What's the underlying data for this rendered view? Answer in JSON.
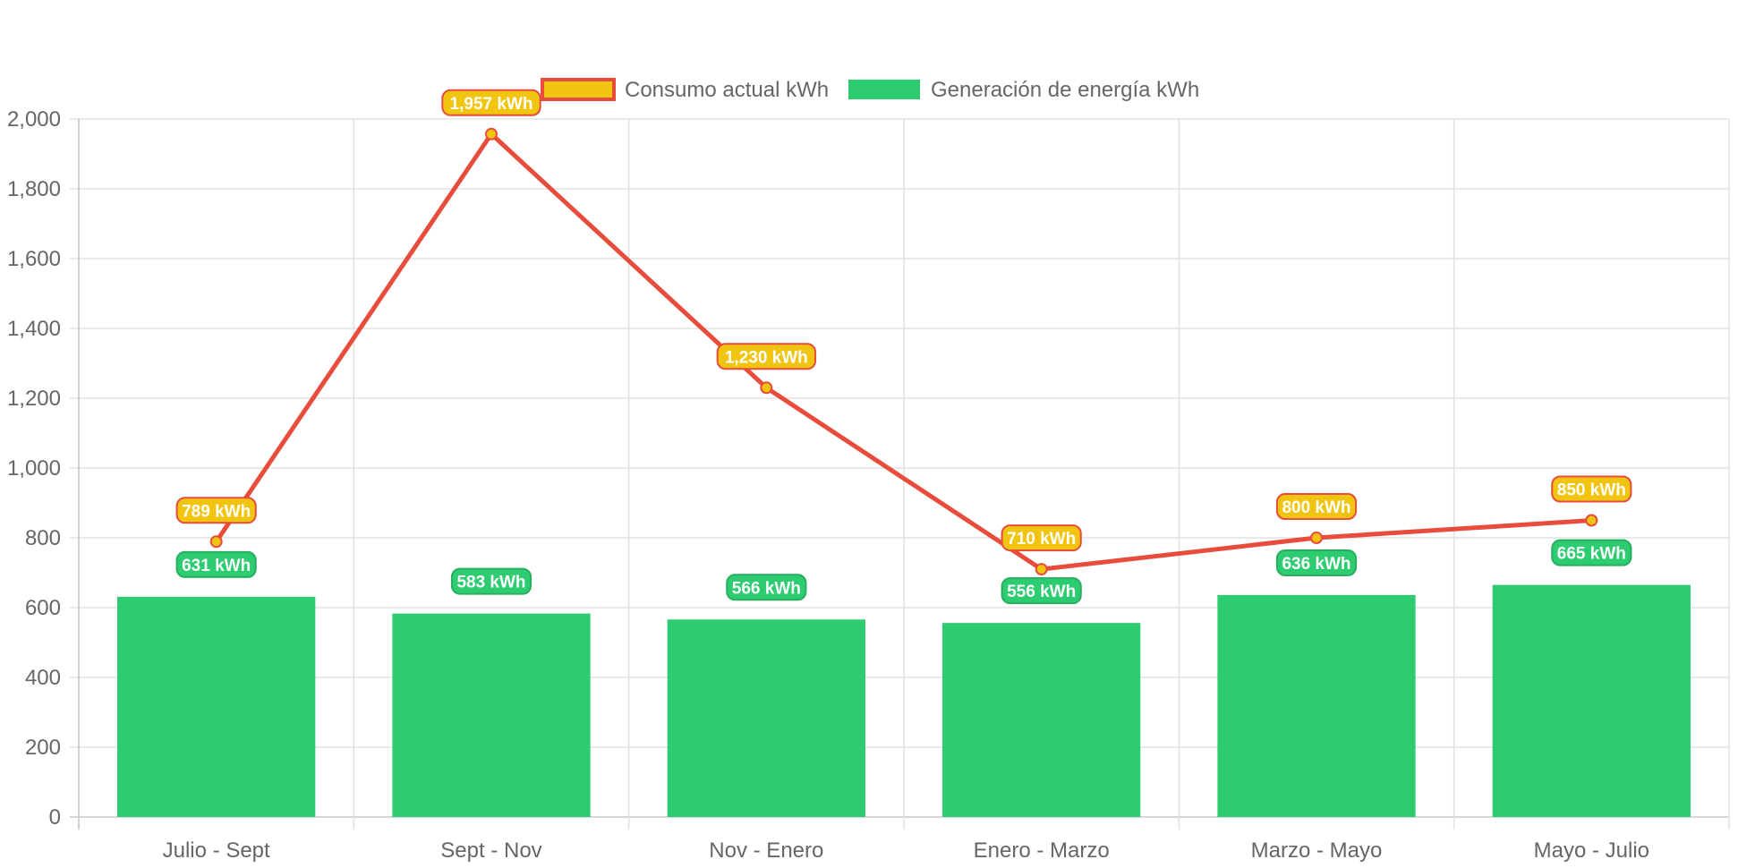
{
  "chart_data": {
    "type": "bar",
    "categories": [
      "Julio - Sept",
      "Sept - Nov",
      "Nov - Enero",
      "Enero - Marzo",
      "Marzo - Mayo",
      "Mayo - Julio"
    ],
    "series": [
      {
        "name": "Consumo actual kWh",
        "type": "line",
        "values": [
          789,
          1957,
          1230,
          710,
          800,
          850
        ],
        "labels": [
          "789 kWh",
          "1,957 kWh",
          "1,230 kWh",
          "710 kWh",
          "800 kWh",
          "850 kWh"
        ],
        "color": "#e74c3c",
        "fill": "#f1c40f"
      },
      {
        "name": "Generación de energía kWh",
        "type": "bar",
        "values": [
          631,
          583,
          566,
          556,
          636,
          665
        ],
        "labels": [
          "631 kWh",
          "583 kWh",
          "566 kWh",
          "556 kWh",
          "636 kWh",
          "665 kWh"
        ],
        "color": "#2ecc71"
      }
    ],
    "ylim": [
      0,
      2000
    ],
    "yticks": [
      "0",
      "200",
      "400",
      "600",
      "800",
      "1,000",
      "1,200",
      "1,400",
      "1,600",
      "1,800",
      "2,000"
    ],
    "grid": true,
    "legend_position": "top"
  }
}
